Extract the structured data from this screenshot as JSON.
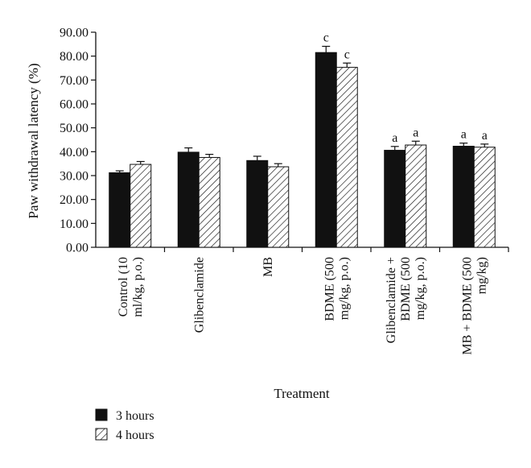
{
  "chart_data": {
    "type": "bar",
    "xlabel": "Treatment",
    "ylabel": "Paw withdrawal latency (%)",
    "ylim": [
      0,
      90
    ],
    "yticks": [
      "0.00",
      "10.00",
      "20.00",
      "30.00",
      "40.00",
      "50.00",
      "60.00",
      "70.00",
      "80.00",
      "90.00"
    ],
    "categories": [
      [
        "Control (10",
        "ml/kg, p.o.)"
      ],
      [
        "Glibenclamide"
      ],
      [
        "MB"
      ],
      [
        "BDME (500",
        "mg/kg, p.o.)"
      ],
      [
        "Glibenclamide +",
        "BDME (500",
        "mg/kg, p.o.)"
      ],
      [
        "MB + BDME (500",
        "mg/kg)"
      ]
    ],
    "series": [
      {
        "name": "3 hours",
        "fill": "solid",
        "color": "#111111",
        "values": [
          31.2,
          39.8,
          36.3,
          81.5,
          40.6,
          42.3
        ],
        "errors": [
          0.8,
          1.8,
          1.8,
          2.6,
          1.6,
          1.3
        ],
        "labels": [
          "",
          "",
          "",
          "c",
          "a",
          "a"
        ]
      },
      {
        "name": "4 hours",
        "fill": "hatch",
        "color": "#111111",
        "values": [
          34.7,
          37.6,
          33.7,
          75.3,
          42.8,
          41.9
        ],
        "errors": [
          1.2,
          1.3,
          1.3,
          1.8,
          1.6,
          1.3
        ],
        "labels": [
          "",
          "",
          "",
          "c",
          "a",
          "a"
        ]
      }
    ],
    "legend_position": "bottom-left",
    "grid": false
  }
}
